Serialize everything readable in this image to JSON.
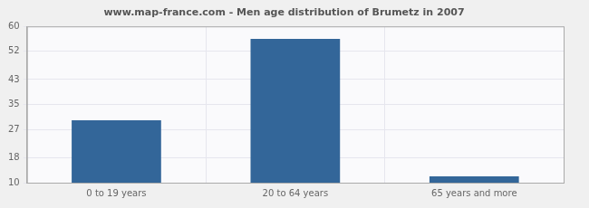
{
  "chart_data": {
    "type": "bar",
    "title": "www.map-france.com - Men age distribution of Brumetz in 2007",
    "categories": [
      "0 to 19 years",
      "20 to 64 years",
      "65 years and more"
    ],
    "values": [
      30,
      56,
      12
    ],
    "color": "#336699",
    "ylim": [
      10,
      60
    ],
    "yticks": [
      10,
      18,
      27,
      35,
      43,
      52,
      60
    ],
    "grid": true
  }
}
